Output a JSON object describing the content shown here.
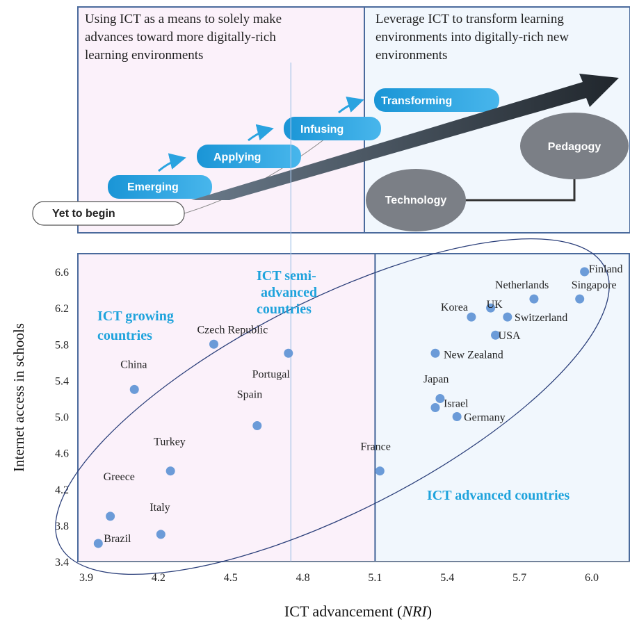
{
  "top_panel": {
    "left_text": [
      "Using ICT as a means to solely make",
      "advances toward more digitally-rich",
      "learning environments"
    ],
    "right_text": [
      "Leverage ICT to transform learning",
      "environments into digitally-rich new",
      "environments"
    ],
    "stages": [
      "Yet to begin",
      "Emerging",
      "Applying",
      "Infusing",
      "Transforming"
    ],
    "circles": [
      "Technology",
      "Pedagogy"
    ]
  },
  "chart_data": {
    "type": "scatter",
    "title": "",
    "xlabel_main": "ICT advancement (",
    "xlabel_italic": "NRI",
    "xlabel_end": ")",
    "ylabel": "Internet access in schools",
    "xlim": [
      3.9,
      6.1
    ],
    "ylim": [
      3.4,
      6.8
    ],
    "x_ticks": [
      "3.9",
      "4.2",
      "4.5",
      "4.8",
      "5.1",
      "5.4",
      "5.7",
      "6.0"
    ],
    "y_ticks": [
      "3.4",
      "3.8",
      "4.2",
      "4.6",
      "5.0",
      "5.4",
      "5.8",
      "6.2",
      "6.6"
    ],
    "point_color": "#6b9bd8",
    "points": [
      {
        "label": "Brazil",
        "x": 3.95,
        "y": 3.6
      },
      {
        "label": "Greece",
        "x": 4.0,
        "y": 3.9
      },
      {
        "label": "Italy",
        "x": 4.21,
        "y": 3.7
      },
      {
        "label": "Turkey",
        "x": 4.25,
        "y": 4.4
      },
      {
        "label": "China",
        "x": 4.1,
        "y": 5.3
      },
      {
        "label": "Czech Republic",
        "x": 4.43,
        "y": 5.8
      },
      {
        "label": "Spain",
        "x": 4.61,
        "y": 4.9
      },
      {
        "label": "Portugal",
        "x": 4.74,
        "y": 5.7
      },
      {
        "label": "France",
        "x": 5.12,
        "y": 4.4
      },
      {
        "label": "Israel",
        "x": 5.35,
        "y": 5.1
      },
      {
        "label": "Japan",
        "x": 5.37,
        "y": 5.2
      },
      {
        "label": "Germany",
        "x": 5.44,
        "y": 5.0
      },
      {
        "label": "New Zealand",
        "x": 5.35,
        "y": 5.7
      },
      {
        "label": "USA",
        "x": 5.6,
        "y": 5.9
      },
      {
        "label": "Korea",
        "x": 5.5,
        "y": 6.1
      },
      {
        "label": "UK",
        "x": 5.58,
        "y": 6.2
      },
      {
        "label": "Switzerland",
        "x": 5.65,
        "y": 6.1
      },
      {
        "label": "Netherlands",
        "x": 5.76,
        "y": 6.3
      },
      {
        "label": "Singapore",
        "x": 5.95,
        "y": 6.3
      },
      {
        "label": "Finland",
        "x": 5.97,
        "y": 6.6
      }
    ],
    "groups": {
      "growing": [
        "ICT growing",
        "countries"
      ],
      "semi": [
        "ICT   semi-",
        "advanced",
        "countries"
      ],
      "advanced": [
        "ICT advanced countries"
      ]
    },
    "colors": {
      "group_label": "#1fa3dc",
      "left_region": "#fbf1fa",
      "right_region": "#f1f7fd",
      "frame": "#4a6a9c"
    }
  }
}
